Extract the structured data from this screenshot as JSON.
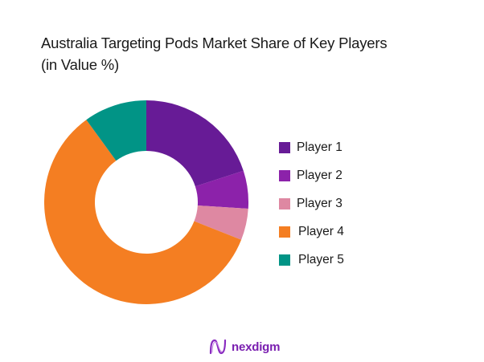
{
  "chart_data": {
    "type": "pie",
    "variant": "donut",
    "title": "Australia Targeting Pods Market Share of Key Players (in Value %)",
    "title_lines": [
      "Australia Targeting Pods Market Share of Key Players",
      "(in Value %)"
    ],
    "categories": [
      "Player 1",
      "Player 2",
      "Player 3",
      "Player 4",
      "Player 5"
    ],
    "values": [
      20,
      6,
      5,
      59,
      10
    ],
    "colors": [
      "#671b96",
      "#8c22aa",
      "#de88a2",
      "#f47e22",
      "#019486"
    ],
    "unit": "%",
    "legend_position": "right",
    "start_angle_deg": 0,
    "direction": "clockwise"
  },
  "legend": {
    "items": [
      {
        "label": "Player 1",
        "color": "#671b96"
      },
      {
        "label": "Player 2",
        "color": "#8c22aa"
      },
      {
        "label": "Player 3",
        "color": "#de88a2"
      },
      {
        "label": "Player 4",
        "color": "#f47e22"
      },
      {
        "label": "Player 5",
        "color": "#019486"
      }
    ]
  },
  "branding": {
    "logo_text": "nexdigm",
    "logo_color": "#7a1fb0"
  }
}
